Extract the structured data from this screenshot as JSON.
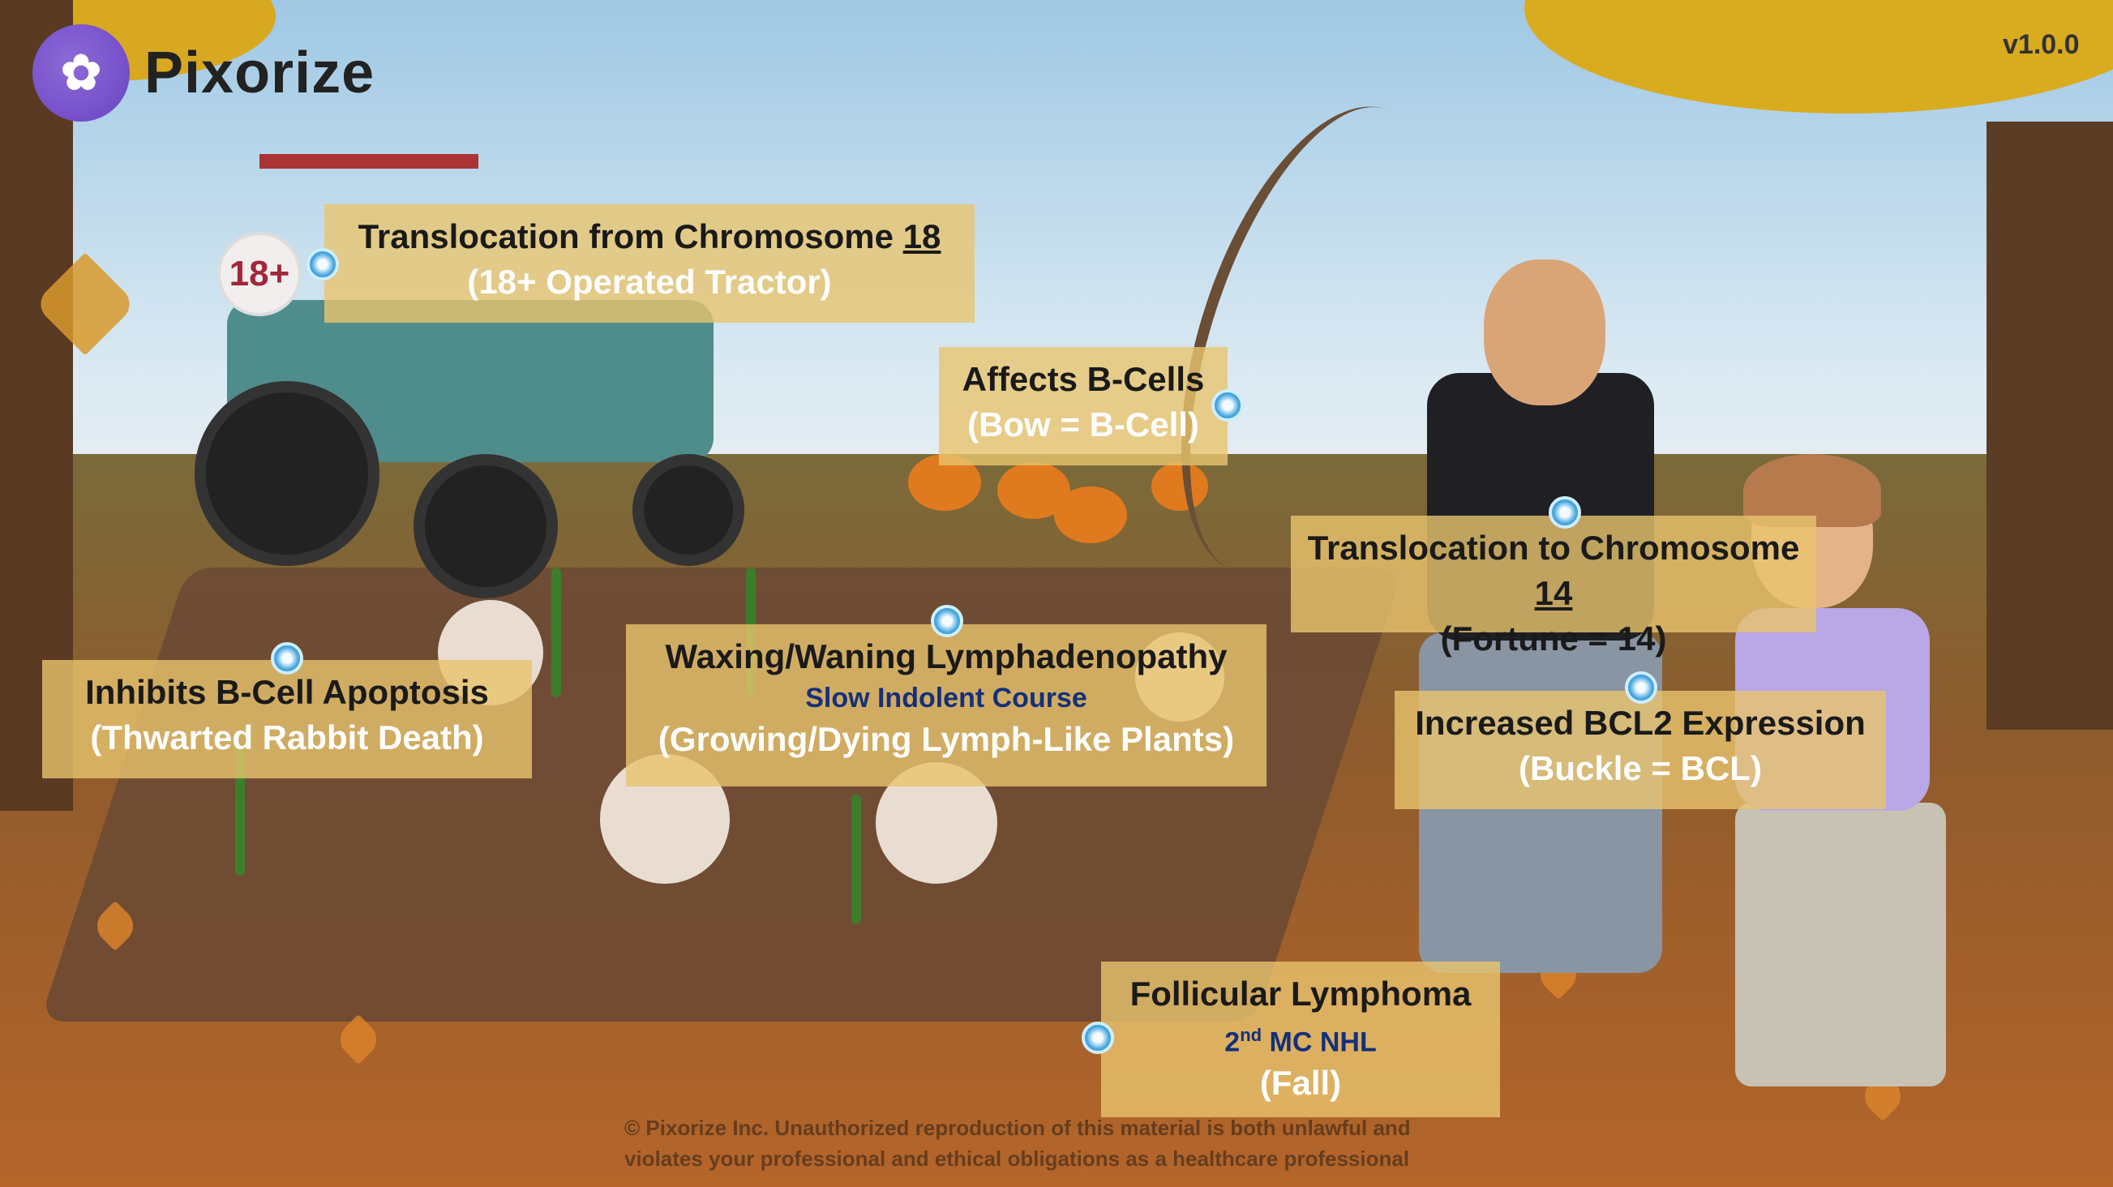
{
  "header": {
    "logo_text": "Pixorize",
    "version": "v1.0.0"
  },
  "tractor_sign": "18+",
  "labels": {
    "translocation18": {
      "pre": "Translocation from Chromosome ",
      "num": "18",
      "mnemonic": "(18+ Operated Tractor)"
    },
    "bcells": {
      "title": "Affects B-Cells",
      "mnemonic": "(Bow = B-Cell)"
    },
    "translocation14": {
      "pre": "Translocation to Chromosome ",
      "num": "14",
      "mnemonic": "(Fortune = 14)"
    },
    "apoptosis": {
      "title": "Inhibits B-Cell Apoptosis",
      "mnemonic": "(Thwarted Rabbit Death)"
    },
    "lymphadenopathy": {
      "title": "Waxing/Waning Lymphadenopathy",
      "note": "Slow Indolent Course",
      "mnemonic": "(Growing/Dying Lymph-Like Plants)"
    },
    "bcl2": {
      "title": "Increased BCL2 Expression",
      "mnemonic": "(Buckle = BCL)"
    },
    "follicular": {
      "title": "Follicular Lymphoma",
      "note_num": "2",
      "note_sup": "nd",
      "note_rest": " MC NHL",
      "mnemonic": "(Fall)"
    }
  },
  "copyright": {
    "line1": "© Pixorize Inc. Unauthorized reproduction of this material is both unlawful and",
    "line2": "violates your professional and ethical obligations as a healthcare professional"
  },
  "colors": {
    "label_bg": "#e8c46e",
    "mnemonic_text": "#ffffff",
    "note_text": "#15307a",
    "hotspot": "#4aa9e0",
    "brand": "#6a43c4"
  }
}
